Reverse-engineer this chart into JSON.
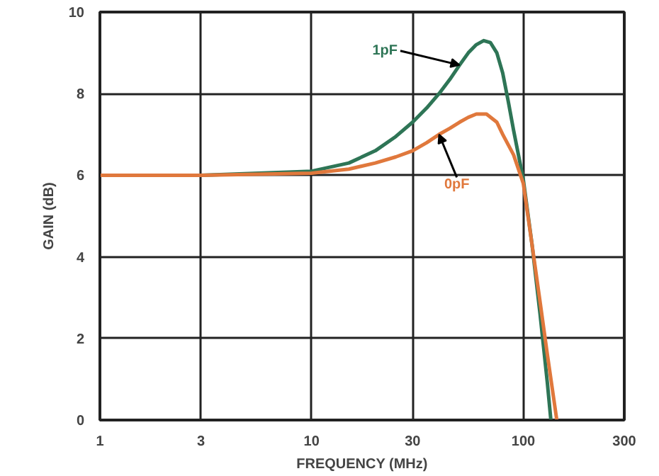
{
  "chart_data": {
    "type": "line",
    "xlabel": "FREQUENCY (MHz)",
    "ylabel": "GAIN (dB)",
    "log": "x",
    "xlim": [
      1,
      300
    ],
    "xticks": [
      1,
      3,
      10,
      30,
      100,
      300
    ],
    "ylim": [
      0,
      10
    ],
    "yticks": [
      0,
      2,
      4,
      6,
      8,
      10
    ],
    "grid": true,
    "line_style": "solid",
    "series": [
      {
        "name": "1pF",
        "color": "#2e7556",
        "x": [
          1,
          3,
          10,
          15,
          20,
          25,
          30,
          35,
          40,
          45,
          50,
          55,
          60,
          65,
          70,
          75,
          80,
          85,
          90,
          100,
          110,
          120,
          130,
          135
        ],
        "values": [
          6,
          6.0,
          6.1,
          6.3,
          6.6,
          6.95,
          7.3,
          7.65,
          8.0,
          8.35,
          8.7,
          9.0,
          9.2,
          9.3,
          9.25,
          9.0,
          8.5,
          7.8,
          7.1,
          5.9,
          4.3,
          2.6,
          0.9,
          0
        ]
      },
      {
        "name": "0pF",
        "color": "#e0783c",
        "x": [
          1,
          3,
          10,
          15,
          20,
          25,
          30,
          35,
          40,
          45,
          50,
          55,
          60,
          67,
          75,
          80,
          90,
          100,
          110,
          120,
          130,
          144
        ],
        "values": [
          6,
          6.0,
          6.05,
          6.15,
          6.3,
          6.45,
          6.6,
          6.8,
          7.0,
          7.15,
          7.3,
          7.42,
          7.5,
          7.5,
          7.3,
          7.0,
          6.5,
          5.8,
          4.3,
          2.9,
          1.6,
          0
        ]
      }
    ]
  }
}
